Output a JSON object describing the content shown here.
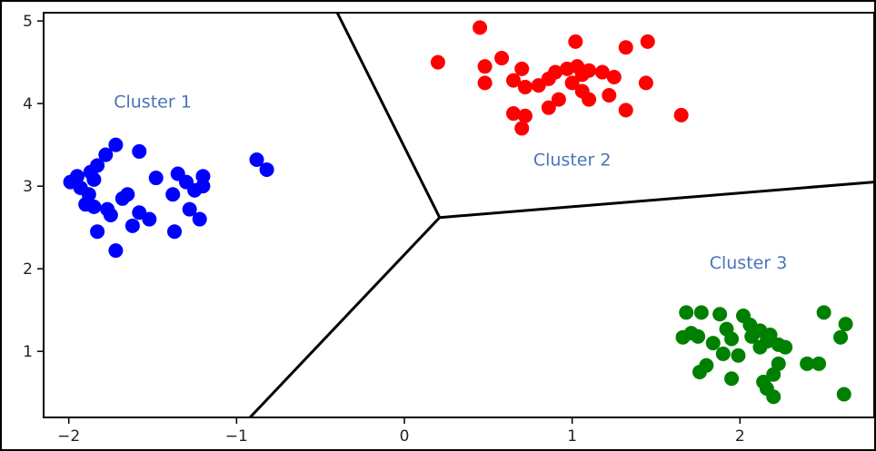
{
  "chart_data": {
    "type": "scatter",
    "title": "",
    "xlabel": "",
    "ylabel": "",
    "xlim": [
      -2.15,
      2.8
    ],
    "ylim": [
      0.2,
      5.1
    ],
    "xticks": [
      -2,
      -1,
      0,
      1,
      2
    ],
    "xtick_labels": [
      "−2",
      "−1",
      "0",
      "1",
      "2"
    ],
    "yticks": [
      1,
      2,
      3,
      4,
      5
    ],
    "ytick_labels": [
      "1",
      "2",
      "3",
      "4",
      "5"
    ],
    "grid": false,
    "series": [
      {
        "name": "Cluster 1",
        "color": "#0000ff",
        "points": [
          [
            -1.72,
            3.5
          ],
          [
            -1.58,
            3.42
          ],
          [
            -1.78,
            3.38
          ],
          [
            -1.83,
            3.25
          ],
          [
            -1.87,
            3.17
          ],
          [
            -1.95,
            3.12
          ],
          [
            -1.99,
            3.05
          ],
          [
            -1.93,
            2.98
          ],
          [
            -1.85,
            3.08
          ],
          [
            -1.88,
            2.9
          ],
          [
            -1.9,
            2.78
          ],
          [
            -1.85,
            2.75
          ],
          [
            -1.77,
            2.72
          ],
          [
            -1.75,
            2.65
          ],
          [
            -1.68,
            2.85
          ],
          [
            -1.65,
            2.9
          ],
          [
            -1.52,
            2.6
          ],
          [
            -1.58,
            2.68
          ],
          [
            -1.62,
            2.52
          ],
          [
            -1.83,
            2.45
          ],
          [
            -1.72,
            2.22
          ],
          [
            -1.48,
            3.1
          ],
          [
            -1.35,
            3.15
          ],
          [
            -1.3,
            3.05
          ],
          [
            -1.25,
            2.95
          ],
          [
            -1.2,
            3.0
          ],
          [
            -1.2,
            3.12
          ],
          [
            -1.38,
            2.9
          ],
          [
            -1.28,
            2.72
          ],
          [
            -1.22,
            2.6
          ],
          [
            -1.37,
            2.45
          ],
          [
            -0.88,
            3.32
          ],
          [
            -0.82,
            3.2
          ]
        ]
      },
      {
        "name": "Cluster 2",
        "color": "#ff0000",
        "points": [
          [
            0.45,
            4.92
          ],
          [
            0.2,
            4.5
          ],
          [
            0.48,
            4.45
          ],
          [
            0.58,
            4.55
          ],
          [
            0.48,
            4.25
          ],
          [
            0.7,
            4.42
          ],
          [
            0.65,
            4.28
          ],
          [
            0.72,
            4.2
          ],
          [
            0.8,
            4.22
          ],
          [
            0.86,
            4.3
          ],
          [
            0.9,
            4.38
          ],
          [
            0.97,
            4.42
          ],
          [
            1.03,
            4.45
          ],
          [
            1.06,
            4.35
          ],
          [
            1.1,
            4.4
          ],
          [
            1.18,
            4.38
          ],
          [
            1.0,
            4.25
          ],
          [
            1.06,
            4.15
          ],
          [
            1.1,
            4.05
          ],
          [
            0.92,
            4.05
          ],
          [
            0.86,
            3.95
          ],
          [
            0.72,
            3.85
          ],
          [
            0.7,
            3.7
          ],
          [
            0.65,
            3.88
          ],
          [
            1.02,
            4.75
          ],
          [
            1.32,
            4.68
          ],
          [
            1.45,
            4.75
          ],
          [
            1.25,
            4.32
          ],
          [
            1.22,
            4.1
          ],
          [
            1.32,
            3.92
          ],
          [
            1.44,
            4.25
          ],
          [
            1.65,
            3.86
          ]
        ]
      },
      {
        "name": "Cluster 3",
        "color": "#008000",
        "points": [
          [
            1.68,
            1.47
          ],
          [
            1.77,
            1.47
          ],
          [
            1.88,
            1.45
          ],
          [
            2.02,
            1.43
          ],
          [
            2.06,
            1.32
          ],
          [
            1.92,
            1.27
          ],
          [
            1.75,
            1.18
          ],
          [
            1.66,
            1.17
          ],
          [
            1.71,
            1.22
          ],
          [
            1.84,
            1.1
          ],
          [
            1.95,
            1.15
          ],
          [
            2.07,
            1.18
          ],
          [
            2.12,
            1.25
          ],
          [
            2.16,
            1.12
          ],
          [
            2.18,
            1.2
          ],
          [
            2.23,
            1.08
          ],
          [
            2.27,
            1.05
          ],
          [
            2.23,
            0.85
          ],
          [
            2.2,
            0.72
          ],
          [
            2.16,
            0.55
          ],
          [
            2.2,
            0.45
          ],
          [
            2.14,
            0.63
          ],
          [
            1.99,
            0.95
          ],
          [
            1.9,
            0.97
          ],
          [
            1.8,
            0.83
          ],
          [
            1.76,
            0.75
          ],
          [
            1.95,
            0.67
          ],
          [
            2.4,
            0.85
          ],
          [
            2.47,
            0.85
          ],
          [
            2.5,
            1.47
          ],
          [
            2.63,
            1.33
          ],
          [
            2.6,
            1.17
          ],
          [
            2.62,
            0.48
          ],
          [
            2.12,
            1.05
          ]
        ]
      }
    ],
    "decision_boundaries": [
      [
        [
          0.21,
          2.62
        ],
        [
          -0.4,
          5.1
        ]
      ],
      [
        [
          0.21,
          2.62
        ],
        [
          2.8,
          3.05
        ]
      ],
      [
        [
          0.21,
          2.62
        ],
        [
          -0.92,
          0.2
        ]
      ]
    ],
    "annotations": [
      {
        "text": "Cluster 1",
        "x": -1.5,
        "y": 3.95
      },
      {
        "text": "Cluster 2",
        "x": 1.0,
        "y": 3.25
      },
      {
        "text": "Cluster 3",
        "x": 2.05,
        "y": 2.0
      }
    ]
  }
}
